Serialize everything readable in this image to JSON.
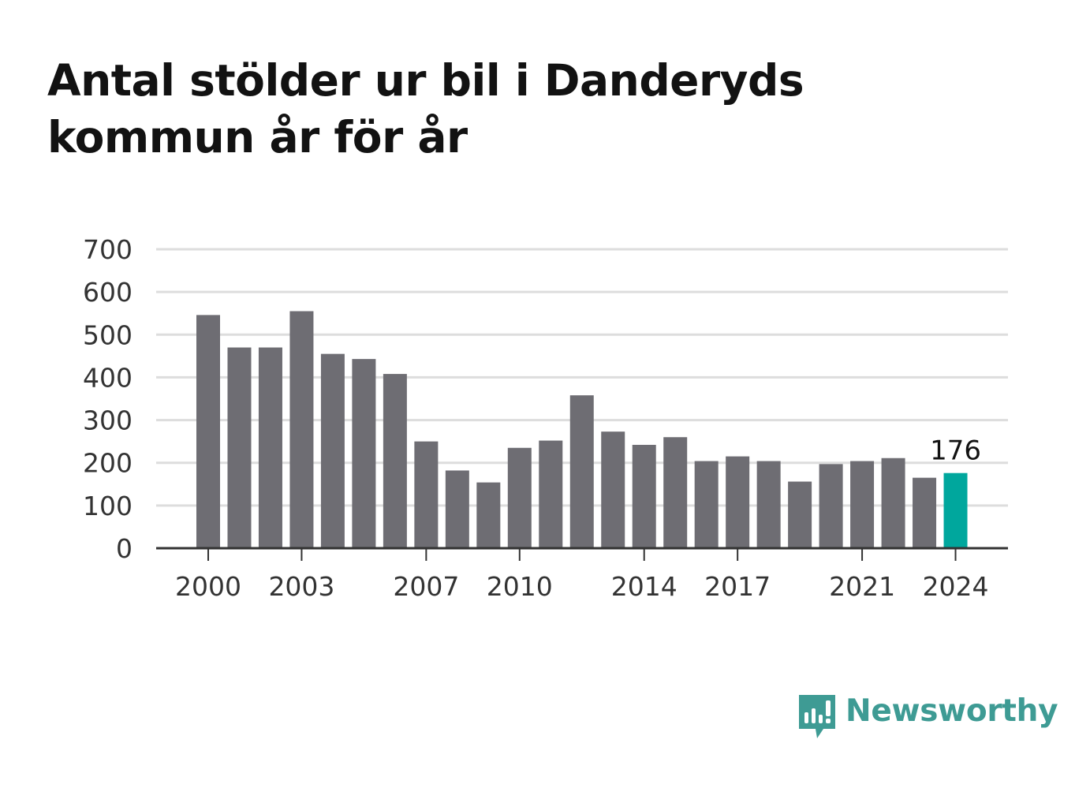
{
  "title": "Antal stölder ur bil i Danderyds kommun år för år",
  "brand": {
    "name": "Newsworthy",
    "icon": "chat-bubble-bar-chart-icon"
  },
  "colors": {
    "bar": "#6e6d73",
    "highlight": "#00a79d",
    "grid": "#dddddd",
    "axis": "#333333",
    "brand": "#3e9b94",
    "text": "#121212"
  },
  "chart_data": {
    "type": "bar",
    "title": "Antal stölder ur bil i Danderyds kommun år för år",
    "xlabel": "",
    "ylabel": "",
    "ylim": [
      0,
      700
    ],
    "yticks": [
      "0",
      "100",
      "200",
      "300",
      "400",
      "500",
      "600",
      "700"
    ],
    "xtick_labels": [
      "2000",
      "2003",
      "2007",
      "2010",
      "2014",
      "2017",
      "2021",
      "2024"
    ],
    "grid": true,
    "categories": [
      "2000",
      "2001",
      "2002",
      "2003",
      "2004",
      "2005",
      "2006",
      "2007",
      "2008",
      "2009",
      "2010",
      "2011",
      "2012",
      "2013",
      "2014",
      "2015",
      "2016",
      "2017",
      "2018",
      "2019",
      "2020",
      "2021",
      "2022",
      "2023",
      "2024"
    ],
    "values": [
      546,
      470,
      470,
      555,
      455,
      443,
      408,
      250,
      182,
      154,
      235,
      252,
      358,
      273,
      242,
      260,
      204,
      215,
      204,
      156,
      197,
      204,
      211,
      165,
      176
    ],
    "highlight": {
      "category": "2024",
      "label": "176"
    }
  }
}
